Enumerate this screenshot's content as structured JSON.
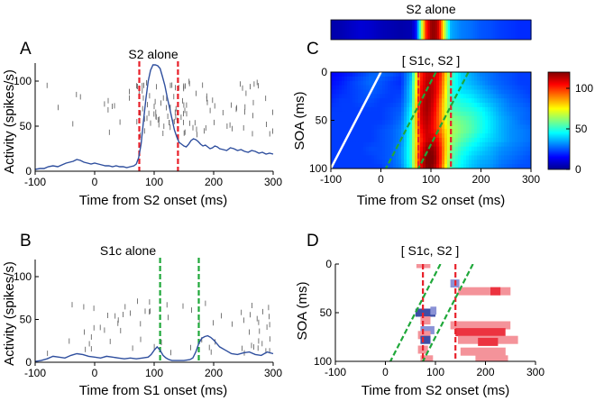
{
  "chart_data": [
    {
      "id": "A",
      "type": "line",
      "panel_label": "A",
      "title": "S2 alone",
      "xlabel": "Time from S2 onset (ms)",
      "ylabel": "Activity (spikes/s)",
      "xlim": [
        -100,
        300
      ],
      "ylim": [
        0,
        120
      ],
      "xticks": [
        -100,
        0,
        100,
        200,
        300
      ],
      "yticks": [
        0,
        50,
        100
      ],
      "markers": [
        {
          "x": 75,
          "color": "#e8202a"
        },
        {
          "x": 140,
          "color": "#e8202a"
        }
      ],
      "series": [
        {
          "name": "firing rate",
          "color": "#2f4f9e",
          "x": [
            -100,
            -92,
            -85,
            -78,
            -70,
            -62,
            -55,
            -48,
            -42,
            -36,
            -30,
            -24,
            -18,
            -12,
            -6,
            0,
            6,
            12,
            18,
            24,
            30,
            36,
            42,
            48,
            54,
            60,
            66,
            70,
            74,
            78,
            82,
            86,
            90,
            94,
            98,
            102,
            106,
            110,
            114,
            118,
            122,
            126,
            130,
            134,
            138,
            142,
            146,
            150,
            154,
            158,
            162,
            166,
            170,
            174,
            178,
            182,
            186,
            190,
            194,
            198,
            202,
            206,
            210,
            216,
            222,
            228,
            234,
            240,
            246,
            252,
            258,
            264,
            270,
            276,
            282,
            288,
            294,
            300
          ],
          "values": [
            2,
            3,
            3,
            5,
            6,
            5,
            7,
            9,
            10,
            11,
            13,
            12,
            10,
            9,
            8,
            9,
            8,
            7,
            6,
            6,
            5,
            6,
            5,
            5,
            4,
            5,
            6,
            8,
            15,
            30,
            55,
            80,
            100,
            112,
            118,
            118,
            117,
            114,
            105,
            95,
            82,
            70,
            58,
            46,
            38,
            32,
            30,
            28,
            27,
            30,
            34,
            36,
            35,
            33,
            30,
            28,
            29,
            27,
            25,
            26,
            28,
            27,
            25,
            24,
            23,
            26,
            25,
            23,
            24,
            22,
            21,
            23,
            22,
            20,
            21,
            19,
            20,
            19
          ]
        }
      ],
      "raster_ylim": [
        40,
        100
      ],
      "raster_x_range": [
        -80,
        300
      ],
      "raster_density": [
        {
          "from": -80,
          "to": 70,
          "n": 14
        },
        {
          "from": 70,
          "to": 160,
          "n": 70
        },
        {
          "from": 160,
          "to": 300,
          "n": 40
        }
      ]
    },
    {
      "id": "B",
      "type": "line",
      "panel_label": "B",
      "title": "S1c alone",
      "xlabel": "Time from S1 onset (ms)",
      "ylabel": "Activity (spikes/s)",
      "xlim": [
        -100,
        300
      ],
      "ylim": [
        0,
        120
      ],
      "xticks": [
        -100,
        0,
        100,
        200,
        300
      ],
      "yticks": [
        0,
        50,
        100
      ],
      "markers": [
        {
          "x": 110,
          "color": "#1fa83a"
        },
        {
          "x": 175,
          "color": "#1fa83a"
        }
      ],
      "series": [
        {
          "name": "firing rate",
          "color": "#2f4f9e",
          "x": [
            -100,
            -90,
            -80,
            -70,
            -60,
            -50,
            -40,
            -30,
            -20,
            -10,
            0,
            10,
            20,
            30,
            40,
            50,
            60,
            70,
            80,
            90,
            95,
            100,
            105,
            110,
            115,
            120,
            125,
            130,
            140,
            150,
            160,
            165,
            170,
            175,
            180,
            185,
            190,
            195,
            200,
            205,
            210,
            220,
            230,
            240,
            250,
            260,
            270,
            280,
            290,
            300
          ],
          "values": [
            1,
            2,
            4,
            7,
            6,
            5,
            8,
            10,
            9,
            7,
            6,
            5,
            7,
            6,
            5,
            4,
            5,
            4,
            5,
            6,
            9,
            14,
            18,
            14,
            8,
            5,
            3,
            2,
            2,
            2,
            3,
            5,
            12,
            22,
            28,
            30,
            31,
            29,
            26,
            22,
            18,
            14,
            10,
            9,
            11,
            12,
            9,
            8,
            12,
            10
          ]
        }
      ],
      "raster_ylim": [
        10,
        72
      ],
      "raster_x_range": [
        -80,
        300
      ],
      "raster_density": [
        {
          "from": -80,
          "to": 100,
          "n": 30
        },
        {
          "from": 100,
          "to": 170,
          "n": 8
        },
        {
          "from": 170,
          "to": 300,
          "n": 32
        }
      ]
    },
    {
      "id": "C",
      "type": "heatmap",
      "panel_label": "C",
      "title": "[ S1c, S2 ]",
      "strip_title": "S2 alone",
      "xlabel": "Time from S2 onset (ms)",
      "ylabel": "SOA (ms)",
      "xlim": [
        -100,
        300
      ],
      "ylim": [
        0,
        100
      ],
      "xticks": [
        -100,
        0,
        100,
        200,
        300
      ],
      "yticks": [
        0,
        50,
        100
      ],
      "colorbar": {
        "min": 0,
        "max": 120,
        "ticks": [
          0,
          50,
          100
        ]
      },
      "markers_red": [
        75,
        140
      ],
      "diagonal_white": {
        "x_at_soa0": 0,
        "x_at_soa100": -100
      },
      "diagonal_green": [
        {
          "x_at_soa0": 110,
          "x_at_soa100": 10
        },
        {
          "x_at_soa0": 175,
          "x_at_soa100": 75
        }
      ],
      "soa": [
        0,
        10,
        20,
        30,
        40,
        50,
        60,
        70,
        80,
        90,
        100
      ],
      "time": [
        -100,
        -80,
        -60,
        -40,
        -20,
        0,
        20,
        40,
        60,
        70,
        80,
        90,
        100,
        110,
        120,
        130,
        140,
        160,
        180,
        200,
        220,
        240,
        260,
        280,
        300
      ],
      "rates": [
        [
          15,
          16,
          18,
          22,
          26,
          28,
          26,
          22,
          35,
          70,
          100,
          110,
          112,
          110,
          100,
          80,
          55,
          40,
          35,
          30,
          28,
          25,
          24,
          22,
          22
        ],
        [
          16,
          18,
          22,
          25,
          28,
          25,
          22,
          20,
          38,
          72,
          102,
          112,
          114,
          108,
          98,
          78,
          52,
          40,
          36,
          32,
          28,
          26,
          24,
          22,
          22
        ],
        [
          18,
          20,
          22,
          24,
          26,
          24,
          22,
          22,
          40,
          75,
          105,
          114,
          115,
          108,
          95,
          75,
          50,
          42,
          40,
          36,
          32,
          28,
          26,
          24,
          22
        ],
        [
          20,
          22,
          22,
          24,
          24,
          22,
          22,
          24,
          40,
          78,
          108,
          116,
          114,
          105,
          90,
          72,
          52,
          48,
          45,
          40,
          36,
          32,
          28,
          26,
          24
        ],
        [
          22,
          22,
          22,
          22,
          22,
          22,
          24,
          26,
          44,
          80,
          110,
          116,
          112,
          102,
          88,
          70,
          56,
          52,
          50,
          46,
          40,
          34,
          30,
          28,
          26
        ],
        [
          22,
          22,
          22,
          22,
          22,
          22,
          24,
          28,
          46,
          82,
          108,
          114,
          110,
          100,
          88,
          72,
          62,
          58,
          54,
          48,
          42,
          36,
          32,
          28,
          26
        ],
        [
          22,
          22,
          22,
          22,
          22,
          24,
          26,
          30,
          48,
          80,
          104,
          112,
          108,
          100,
          90,
          78,
          66,
          60,
          55,
          48,
          42,
          36,
          32,
          30,
          28
        ],
        [
          22,
          22,
          22,
          22,
          22,
          24,
          26,
          30,
          50,
          78,
          100,
          110,
          112,
          108,
          96,
          80,
          64,
          56,
          50,
          44,
          40,
          36,
          32,
          30,
          28
        ],
        [
          22,
          22,
          22,
          22,
          24,
          24,
          26,
          32,
          50,
          80,
          104,
          116,
          120,
          114,
          100,
          80,
          60,
          50,
          44,
          40,
          36,
          32,
          30,
          28,
          26
        ],
        [
          22,
          22,
          22,
          22,
          22,
          24,
          26,
          32,
          50,
          82,
          108,
          120,
          122,
          116,
          100,
          78,
          56,
          46,
          40,
          36,
          34,
          30,
          28,
          26,
          24
        ],
        [
          22,
          22,
          22,
          22,
          22,
          22,
          26,
          30,
          48,
          80,
          106,
          118,
          120,
          112,
          96,
          74,
          52,
          44,
          38,
          34,
          32,
          28,
          26,
          24,
          24
        ]
      ],
      "strip_time": [
        -100,
        -80,
        -60,
        -40,
        -20,
        0,
        20,
        40,
        60,
        70,
        80,
        90,
        100,
        105,
        110,
        115,
        120,
        130,
        140,
        160,
        180,
        200,
        220,
        240,
        260,
        280,
        300
      ],
      "strip_rates": [
        5,
        6,
        8,
        10,
        9,
        7,
        6,
        5,
        6,
        15,
        60,
        100,
        116,
        118,
        116,
        110,
        95,
        60,
        35,
        30,
        28,
        25,
        24,
        22,
        21,
        20,
        20
      ]
    },
    {
      "id": "D",
      "type": "scatter",
      "panel_label": "D",
      "title": "[ S1c, S2 ]",
      "xlabel": "Time from S2 onset (ms)",
      "ylabel": "SOA (ms)",
      "xlim": [
        -100,
        300
      ],
      "ylim": [
        0,
        100
      ],
      "xticks": [
        -100,
        0,
        100,
        200,
        300
      ],
      "yticks": [
        0,
        50,
        100
      ],
      "markers_red": [
        75,
        140
      ],
      "diagonal_green": [
        {
          "x_at_soa0": 110,
          "x_at_soa100": 10
        },
        {
          "x_at_soa0": 175,
          "x_at_soa100": 75
        }
      ],
      "segments": [
        {
          "soa": 0,
          "x0": 62,
          "x1": 90,
          "kind": "increase",
          "strength": "weak"
        },
        {
          "soa": 20,
          "x0": 130,
          "x1": 148,
          "kind": "decrease",
          "strength": "weak"
        },
        {
          "soa": 28,
          "x0": 145,
          "x1": 250,
          "kind": "increase",
          "strength": "weak"
        },
        {
          "soa": 28,
          "x0": 210,
          "x1": 230,
          "kind": "increase",
          "strength": "strong"
        },
        {
          "soa": 50,
          "x0": 60,
          "x1": 100,
          "kind": "decrease",
          "strength": "strong"
        },
        {
          "soa": 48,
          "x0": 90,
          "x1": 102,
          "kind": "decrease",
          "strength": "weak"
        },
        {
          "soa": 58,
          "x0": 70,
          "x1": 90,
          "kind": "increase",
          "strength": "weak"
        },
        {
          "soa": 63,
          "x0": 130,
          "x1": 250,
          "kind": "increase",
          "strength": "weak"
        },
        {
          "soa": 68,
          "x0": 70,
          "x1": 98,
          "kind": "decrease",
          "strength": "weak"
        },
        {
          "soa": 70,
          "x0": 140,
          "x1": 240,
          "kind": "increase",
          "strength": "strong"
        },
        {
          "soa": 73,
          "x0": 65,
          "x1": 90,
          "kind": "increase",
          "strength": "weak"
        },
        {
          "soa": 78,
          "x0": 70,
          "x1": 90,
          "kind": "decrease",
          "strength": "strong"
        },
        {
          "soa": 78,
          "x0": 145,
          "x1": 265,
          "kind": "increase",
          "strength": "weak"
        },
        {
          "soa": 80,
          "x0": 185,
          "x1": 225,
          "kind": "increase",
          "strength": "strong"
        },
        {
          "soa": 88,
          "x0": 65,
          "x1": 85,
          "kind": "increase",
          "strength": "weak"
        },
        {
          "soa": 90,
          "x0": 150,
          "x1": 240,
          "kind": "increase",
          "strength": "weak"
        },
        {
          "soa": 98,
          "x0": 70,
          "x1": 95,
          "kind": "increase",
          "strength": "weak"
        },
        {
          "soa": 98,
          "x0": 180,
          "x1": 245,
          "kind": "increase",
          "strength": "weak"
        }
      ]
    }
  ]
}
